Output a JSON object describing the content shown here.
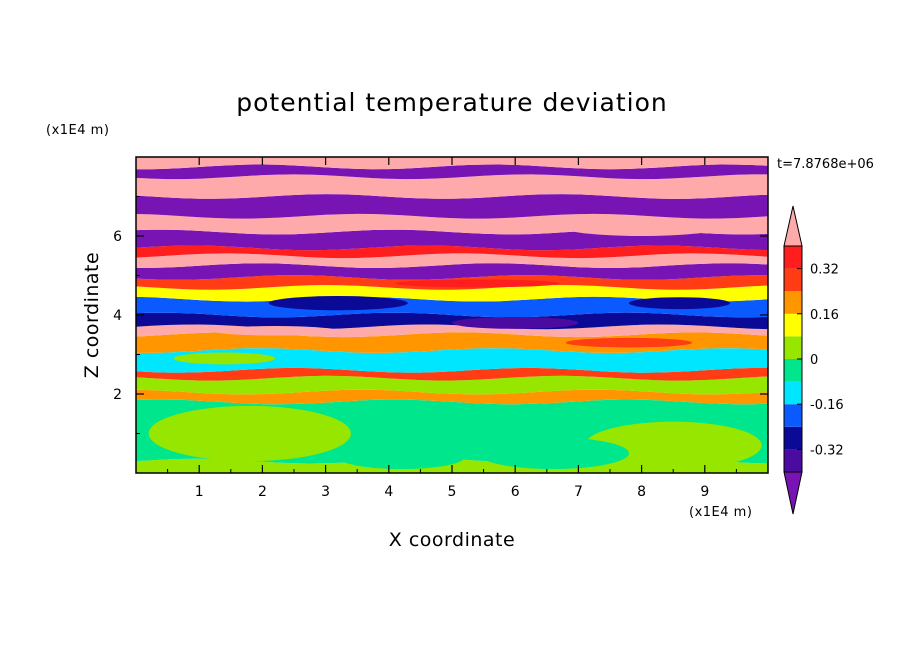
{
  "chart_data": {
    "type": "heatmap",
    "title": "potential temperature deviation",
    "xlabel": "X coordinate",
    "ylabel": "Z coordinate",
    "x_unit": "(x1E4 m)",
    "y_unit": "(x1E4 m)",
    "time_label": "t=7.8768e+06",
    "xlim": [
      0,
      10
    ],
    "ylim": [
      0,
      8
    ],
    "xticks": [
      1,
      2,
      3,
      4,
      5,
      6,
      7,
      8,
      9
    ],
    "yticks": [
      2,
      4,
      6
    ],
    "colorbar": {
      "levels": [
        -0.4,
        -0.32,
        -0.24,
        -0.16,
        -0.08,
        0,
        0.08,
        0.16,
        0.24,
        0.32,
        0.4
      ],
      "labels": [
        -0.32,
        -0.16,
        0,
        0.16,
        0.32
      ],
      "label_text": [
        "-0.32",
        "-0.16",
        "0",
        "0.16",
        "0.32"
      ],
      "colors": [
        "#4b0aa0",
        "#0a0a96",
        "#0a5aff",
        "#00e6ff",
        "#00e68c",
        "#96e600",
        "#ffff00",
        "#ff9600",
        "#ff3c14",
        "#ff1e1e"
      ],
      "under_color": "#7814b4",
      "over_color": "#ffaaaa"
    },
    "bands": [
      {
        "z": [
          0.0,
          0.3
        ],
        "value": 0.04
      },
      {
        "z": [
          0.3,
          1.8
        ],
        "value": -0.04
      },
      {
        "z": [
          1.8,
          2.05
        ],
        "value": 0.2
      },
      {
        "z": [
          2.05,
          2.4
        ],
        "value": 0.05
      },
      {
        "z": [
          2.4,
          2.6
        ],
        "value": 0.28
      },
      {
        "z": [
          2.6,
          3.1
        ],
        "value": -0.12
      },
      {
        "z": [
          3.1,
          3.5
        ],
        "value": 0.18
      },
      {
        "z": [
          3.5,
          3.7
        ],
        "value": 0.44
      },
      {
        "z": [
          3.7,
          4.0
        ],
        "value": -0.28
      },
      {
        "z": [
          4.0,
          4.4
        ],
        "value": -0.18
      },
      {
        "z": [
          4.4,
          4.7
        ],
        "value": 0.1
      },
      {
        "z": [
          4.7,
          4.95
        ],
        "value": 0.3
      },
      {
        "z": [
          4.95,
          5.25
        ],
        "value": -0.44
      },
      {
        "z": [
          5.25,
          5.5
        ],
        "value": 0.44
      },
      {
        "z": [
          5.5,
          5.7
        ],
        "value": 0.34
      },
      {
        "z": [
          5.7,
          6.1
        ],
        "value": -0.44
      },
      {
        "z": [
          6.1,
          6.5
        ],
        "value": 0.44
      },
      {
        "z": [
          6.5,
          7.0
        ],
        "value": -0.44
      },
      {
        "z": [
          7.0,
          7.5
        ],
        "value": 0.44
      },
      {
        "z": [
          7.5,
          7.75
        ],
        "value": -0.44
      },
      {
        "z": [
          7.75,
          8.0
        ],
        "value": 0.44
      }
    ],
    "blobs": [
      {
        "x": 1.8,
        "z": 1.0,
        "rx": 1.6,
        "rz": 0.7,
        "value": 0.04
      },
      {
        "x": 8.5,
        "z": 0.7,
        "rx": 1.4,
        "rz": 0.6,
        "value": 0.04
      },
      {
        "x": 6.6,
        "z": 0.5,
        "rx": 1.2,
        "rz": 0.4,
        "value": -0.04
      },
      {
        "x": 4.2,
        "z": 0.4,
        "rx": 1.0,
        "rz": 0.3,
        "value": -0.04
      },
      {
        "x": 6.0,
        "z": 3.8,
        "rx": 1.0,
        "rz": 0.15,
        "value": -0.36
      },
      {
        "x": 2.2,
        "z": 3.6,
        "rx": 1.0,
        "rz": 0.12,
        "value": 0.44
      },
      {
        "x": 7.8,
        "z": 3.3,
        "rx": 1.0,
        "rz": 0.12,
        "value": 0.28
      },
      {
        "x": 3.2,
        "z": 4.3,
        "rx": 1.1,
        "rz": 0.18,
        "value": -0.3
      },
      {
        "x": 8.6,
        "z": 4.3,
        "rx": 0.8,
        "rz": 0.15,
        "value": -0.26
      },
      {
        "x": 5.4,
        "z": 4.8,
        "rx": 1.3,
        "rz": 0.1,
        "value": 0.34
      },
      {
        "x": 1.4,
        "z": 2.9,
        "rx": 0.8,
        "rz": 0.15,
        "value": 0.02
      },
      {
        "x": 8.0,
        "z": 6.2,
        "rx": 1.2,
        "rz": 0.2,
        "value": 0.44
      }
    ]
  }
}
